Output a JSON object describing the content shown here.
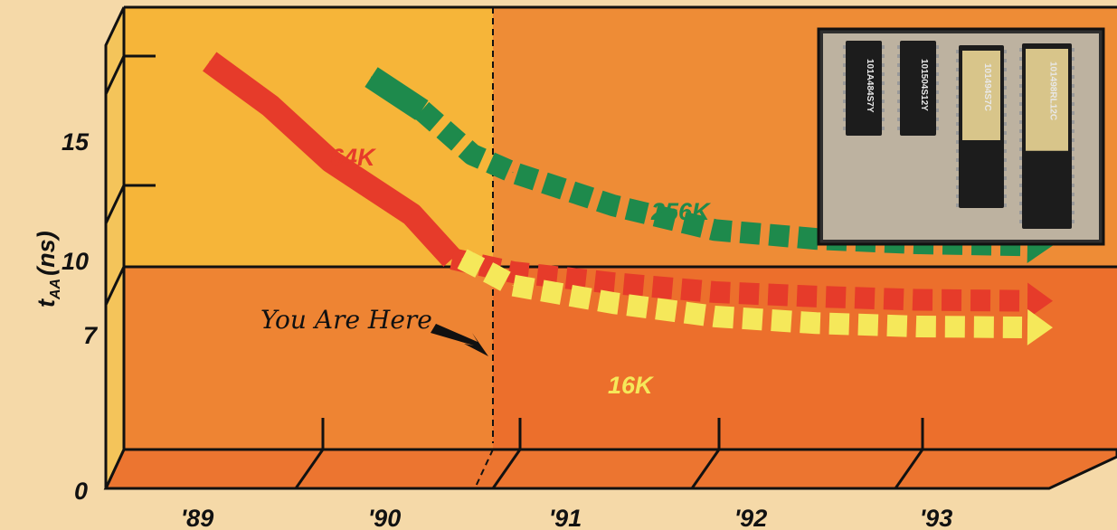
{
  "chart_data": {
    "type": "line",
    "ylabel": "t",
    "ylabel_sub": "AA",
    "ylabel_unit": "(ns)",
    "yticks": [
      "0",
      "7",
      "10",
      "15"
    ],
    "xticks": [
      "'89",
      "'90",
      "'91",
      "'92",
      "'93"
    ],
    "annotation": "You Are Here",
    "series": [
      {
        "name": "64K",
        "color": "#e63b2a",
        "label_color": "#e63b2a",
        "x": [
          1989.5,
          1989.8,
          1990.1,
          1990.5,
          1990.7,
          1991.0,
          1991.5,
          1992.0,
          1992.5,
          1993.0,
          1993.6
        ],
        "y": [
          17.5,
          15.5,
          13.0,
          10.6,
          8.6,
          8.0,
          7.5,
          7.1,
          6.9,
          6.75,
          6.7
        ]
      },
      {
        "name": "256K",
        "color": "#1e8a4c",
        "label_color": "#1e8a4c",
        "x": [
          1990.3,
          1990.55,
          1990.8,
          1991.0,
          1991.5,
          1992.0,
          1992.5,
          1993.0,
          1993.6
        ],
        "y": [
          16.8,
          15.3,
          13.3,
          12.5,
          11.0,
          9.9,
          9.5,
          9.3,
          9.2
        ]
      },
      {
        "name": "16K",
        "color": "#f5e85a",
        "label_color": "#f5e85a",
        "x": [
          1990.75,
          1990.9,
          1991.0,
          1991.5,
          1992.0,
          1992.5,
          1993.0,
          1993.6
        ],
        "y": [
          8.6,
          7.9,
          7.4,
          6.6,
          6.0,
          5.7,
          5.55,
          5.5
        ]
      }
    ],
    "colors": {
      "background": "#f5d9a8",
      "past_top": "#f6b539",
      "past_bottom": "#ee8433",
      "future_top": "#ee8c36",
      "future_bottom": "#ec6f2c",
      "floor": "#ec7530"
    }
  },
  "photo": {
    "chips": [
      "101A484S7Y",
      "101504S12Y",
      "101494S7C",
      "101498RL12C"
    ]
  }
}
